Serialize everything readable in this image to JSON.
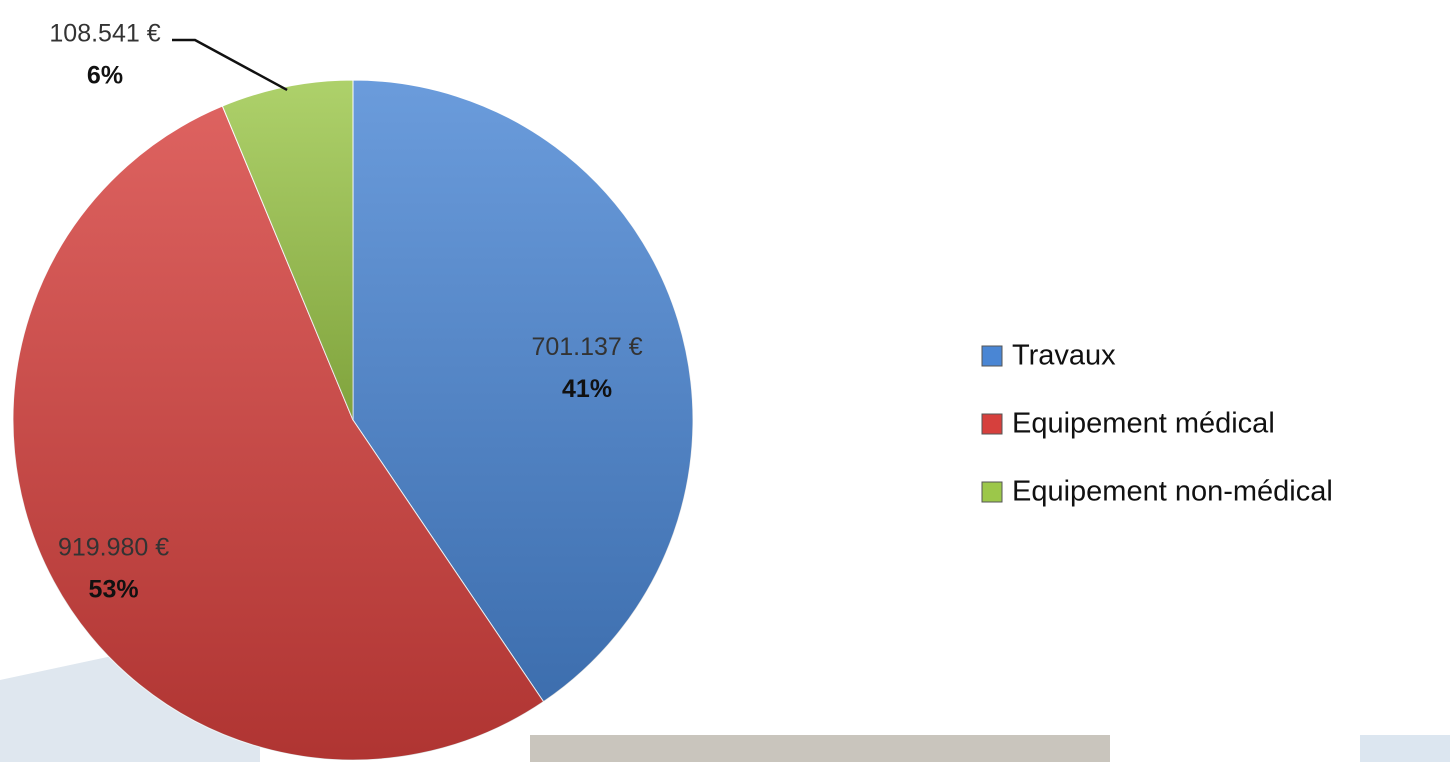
{
  "chart_data": {
    "type": "pie",
    "categories": [
      "Travaux",
      "Equipement médical",
      "Equipement non-médical"
    ],
    "values": [
      701137,
      919980,
      108541
    ],
    "value_labels": [
      "701.137 €",
      "919.980 €",
      "108.541 €"
    ],
    "percentages": [
      41,
      53,
      6
    ],
    "percentage_labels": [
      "41%",
      "53%",
      "6%"
    ],
    "colors": [
      "#4a86d4",
      "#d6403d",
      "#9cc74a"
    ],
    "legend": "right"
  }
}
